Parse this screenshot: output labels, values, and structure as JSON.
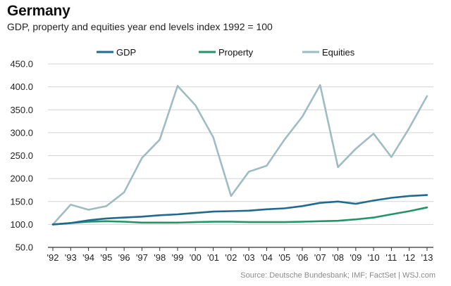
{
  "chart_data": {
    "type": "line",
    "title": "Germany",
    "subtitle": "GDP, property and equities year end levels index 1992 = 100",
    "xlabel": "",
    "ylabel": "",
    "categories": [
      "'92",
      "'93",
      "'94",
      "'95",
      "'96",
      "'97",
      "'98",
      "'99",
      "'00",
      "'01",
      "'02",
      "'03",
      "'04",
      "'05",
      "'06",
      "'07",
      "'08",
      "'09",
      "'10",
      "'11",
      "'12",
      "'13"
    ],
    "ylim": [
      50,
      450
    ],
    "yticks": [
      "450.0",
      "400.0",
      "350.0",
      "300.0",
      "250.0",
      "200.0",
      "150.0",
      "100.0",
      "50.0"
    ],
    "ytick_values": [
      450,
      400,
      350,
      300,
      250,
      200,
      150,
      100,
      50
    ],
    "grid": true,
    "legend_position": "top",
    "series": [
      {
        "name": "GDP",
        "color": "#1f6a8f",
        "values": [
          100,
          103,
          109,
          113,
          115,
          117,
          120,
          122,
          125,
          128,
          129,
          130,
          133,
          135,
          140,
          147,
          150,
          145,
          152,
          158,
          162,
          164
        ]
      },
      {
        "name": "Property",
        "color": "#229466",
        "values": [
          100,
          103,
          106,
          107,
          106,
          104,
          104,
          104,
          105,
          106,
          106,
          105,
          105,
          105,
          106,
          107,
          108,
          111,
          115,
          122,
          129,
          137
        ]
      },
      {
        "name": "Equities",
        "color": "#9fbcc4",
        "values": [
          100,
          143,
          132,
          140,
          170,
          245,
          285,
          402,
          360,
          290,
          162,
          215,
          228,
          285,
          335,
          404,
          225,
          265,
          298,
          247,
          310,
          380
        ]
      }
    ],
    "source": "Source: Deutsche Bundesbank; IMF; FactSet  |  WSJ.com"
  }
}
